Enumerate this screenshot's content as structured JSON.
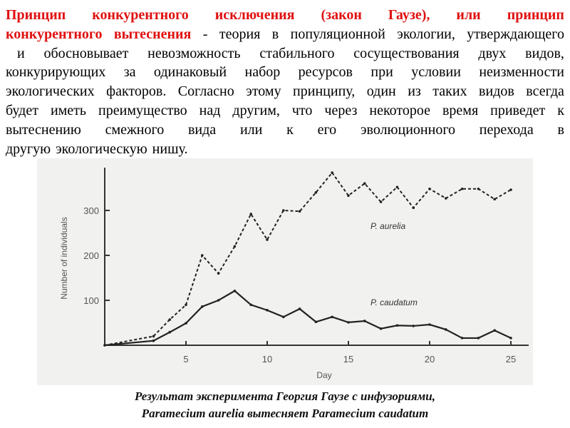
{
  "text": {
    "lines": [
      {
        "red": "Принцип конкурентного исключения (закон Гаузе), или принцип",
        "black": ""
      },
      {
        "red": "конкурентного вытеснения",
        "black": " - теория в популяционной экологии, утверждающего"
      },
      {
        "red": "",
        "black": "и обосновывает невозможность стабильного сосуществования двух видов,"
      },
      {
        "red": "",
        "black": "конкурирующих за одинаковый набор ресурсов при условии неизменности"
      },
      {
        "red": "",
        "black": "экологических факторов. Согласно этому принципу, один из таких видов всегда"
      },
      {
        "red": "",
        "black": "будет иметь преимущество над другим, что через некоторое время приведет к"
      },
      {
        "red": "",
        "black": "вытеснению смежного вида или к его эволюционного перехода в"
      },
      {
        "red": "",
        "black": "другую экологическую нишу."
      }
    ],
    "accent_color": "#e01010"
  },
  "caption": {
    "line1": "Результат эксперимента Георгия Гаузе с инфузориями,",
    "line2": "Paramecium aurelia вытесняет Paramecium caudatum"
  },
  "chart_data": {
    "type": "line",
    "xlabel": "Day",
    "ylabel": "Number of individuals",
    "xlim": [
      0,
      26
    ],
    "ylim": [
      0,
      400
    ],
    "xticks": [
      5,
      10,
      15,
      20,
      25
    ],
    "yticks": [
      100,
      200,
      300
    ],
    "grid": false,
    "x": [
      0,
      3,
      4,
      5,
      6,
      7,
      8,
      9,
      10,
      11,
      12,
      13,
      14,
      15,
      16,
      17,
      18,
      19,
      20,
      21,
      22,
      23,
      24,
      25
    ],
    "series": [
      {
        "name": "P. aurelia",
        "style": "dashed",
        "values": [
          0,
          20,
          57,
          90,
          200,
          160,
          220,
          292,
          235,
          300,
          298,
          340,
          384,
          333,
          360,
          319,
          352,
          306,
          348,
          327,
          348,
          348,
          325,
          346
        ]
      },
      {
        "name": "P. caudatum",
        "style": "solid",
        "values": [
          0,
          10,
          29,
          49,
          86,
          100,
          121,
          90,
          78,
          63,
          81,
          52,
          63,
          51,
          54,
          37,
          44,
          43,
          46,
          35,
          16,
          16,
          33,
          16
        ]
      }
    ]
  }
}
